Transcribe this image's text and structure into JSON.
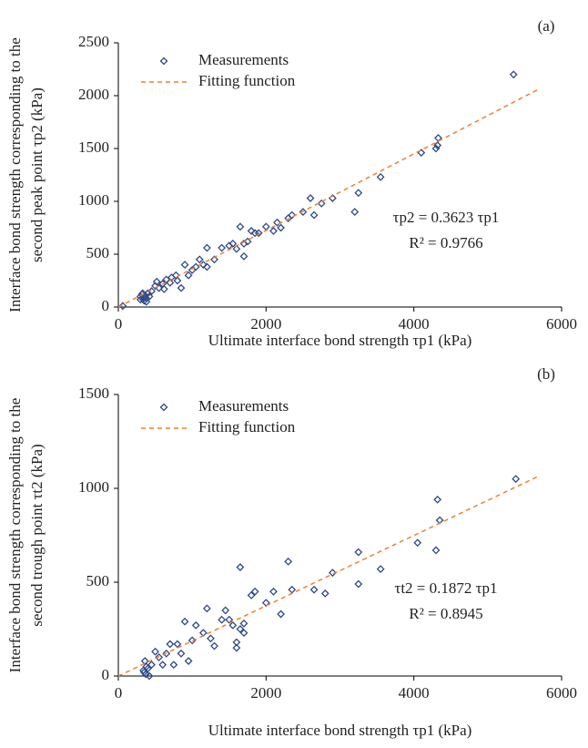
{
  "chart_data": [
    {
      "type": "scatter",
      "panel_label": "(a)",
      "xlabel": "Ultimate interface bond strength τp1 (kPa)",
      "ylabel": [
        "Interface bond strength corresponding to the",
        "second peak point τp2 (kPa)"
      ],
      "annotations": [
        "τp2 = 0.3623 τp1",
        "R² = 0.9766"
      ],
      "xlim": [
        0,
        6000
      ],
      "xticks": [
        0,
        2000,
        4000,
        6000
      ],
      "ylim": [
        0,
        2500
      ],
      "yticks": [
        0,
        500,
        1000,
        1500,
        2000,
        2500
      ],
      "series": [
        {
          "name": "Measurements",
          "color": "#2f4a8a",
          "mark": "diamond",
          "x": [
            60,
            300,
            320,
            340,
            350,
            360,
            380,
            400,
            420,
            300,
            330,
            380,
            450,
            500,
            520,
            550,
            600,
            620,
            650,
            700,
            720,
            780,
            800,
            850,
            900,
            950,
            1000,
            1050,
            1100,
            1150,
            1200,
            1200,
            1300,
            1400,
            1500,
            1550,
            1600,
            1650,
            1700,
            1700,
            1750,
            1800,
            1850,
            1900,
            2000,
            2100,
            2150,
            2200,
            2300,
            2350,
            2500,
            2600,
            2650,
            2750,
            2900,
            3200,
            3250,
            3550,
            4100,
            4300,
            4320,
            4330,
            5350
          ],
          "values": [
            10,
            100,
            120,
            90,
            60,
            110,
            80,
            130,
            100,
            70,
            130,
            50,
            150,
            200,
            240,
            180,
            220,
            170,
            260,
            230,
            280,
            300,
            250,
            180,
            400,
            300,
            350,
            380,
            450,
            400,
            380,
            560,
            450,
            560,
            580,
            600,
            550,
            760,
            480,
            600,
            620,
            720,
            700,
            700,
            760,
            720,
            800,
            750,
            840,
            870,
            900,
            1030,
            870,
            980,
            1030,
            900,
            1080,
            1230,
            1460,
            1500,
            1530,
            1600,
            2200
          ]
        },
        {
          "name": "Fitting function",
          "color": "#f08030",
          "mark": "dashed-line",
          "x": [
            0,
            5700
          ],
          "values": [
            0,
            2065
          ]
        }
      ]
    },
    {
      "type": "scatter",
      "panel_label": "(b)",
      "xlabel": "Ultimate interface bond strength τp1 (kPa)",
      "ylabel": [
        "Interface bond strength corresponding to the",
        "second trough point τt2 (kPa)"
      ],
      "annotations": [
        "τt2 = 0.1872 τp1",
        "R² = 0.8945"
      ],
      "xlim": [
        0,
        6000
      ],
      "xticks": [
        0,
        2000,
        4000,
        6000
      ],
      "ylim": [
        0,
        1500
      ],
      "yticks": [
        0,
        500,
        1000,
        1500
      ],
      "series": [
        {
          "name": "Measurements",
          "color": "#2f4a8a",
          "mark": "diamond",
          "x": [
            350,
            360,
            380,
            400,
            420,
            340,
            370,
            450,
            500,
            550,
            600,
            650,
            700,
            750,
            800,
            850,
            900,
            950,
            1000,
            1050,
            1150,
            1200,
            1250,
            1300,
            1400,
            1450,
            1500,
            1550,
            1600,
            1600,
            1650,
            1650,
            1700,
            1700,
            1800,
            1850,
            2000,
            2100,
            2200,
            2300,
            2350,
            2650,
            2800,
            2900,
            3250,
            3250,
            3550,
            4050,
            4300,
            4320,
            4350,
            5380
          ],
          "values": [
            20,
            80,
            50,
            40,
            0,
            30,
            10,
            60,
            130,
            100,
            60,
            120,
            170,
            60,
            170,
            120,
            290,
            80,
            190,
            270,
            230,
            360,
            200,
            160,
            300,
            350,
            300,
            270,
            150,
            180,
            580,
            250,
            230,
            280,
            430,
            450,
            390,
            450,
            330,
            610,
            460,
            460,
            440,
            550,
            490,
            660,
            570,
            710,
            670,
            940,
            830,
            1050
          ]
        },
        {
          "name": "Fitting function",
          "color": "#f08030",
          "mark": "dashed-line",
          "x": [
            0,
            5700
          ],
          "values": [
            0,
            1067
          ]
        }
      ]
    }
  ]
}
